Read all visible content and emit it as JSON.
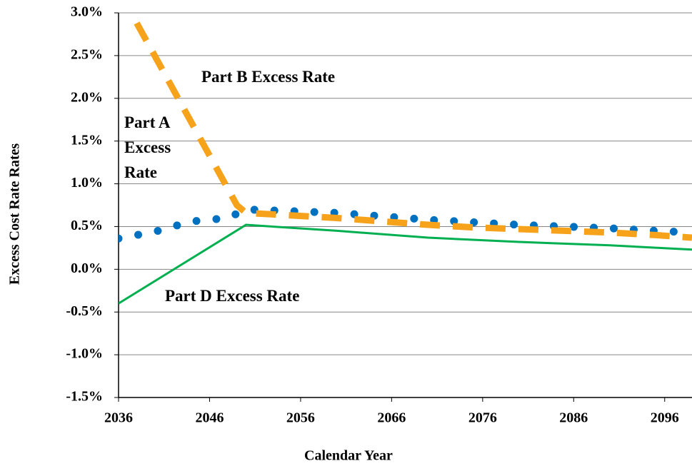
{
  "chart_data": {
    "type": "line",
    "xlabel": "Calendar Year",
    "ylabel": "Excess Cost Rate Rates",
    "xlim": [
      2036,
      2099
    ],
    "xticks": [
      2036,
      2046,
      2056,
      2066,
      2076,
      2086,
      2096
    ],
    "ylim": [
      -1.5,
      3.0
    ],
    "yticks": [
      {
        "value": -1.5,
        "label": "-1.5%"
      },
      {
        "value": -1.0,
        "label": "-1.0%"
      },
      {
        "value": -0.5,
        "label": "-0.5%"
      },
      {
        "value": 0.0,
        "label": "0.0%"
      },
      {
        "value": 0.5,
        "label": "0.5%"
      },
      {
        "value": 1.0,
        "label": "1.0%"
      },
      {
        "value": 1.5,
        "label": "1.5%"
      },
      {
        "value": 2.0,
        "label": "2.0%"
      },
      {
        "value": 2.5,
        "label": "2.5%"
      },
      {
        "value": 3.0,
        "label": "3.0%"
      }
    ],
    "grid": true,
    "series": [
      {
        "name": "Part A Excess Rate",
        "color": "#0070c0",
        "style": "dotted",
        "x": [
          2036,
          2040,
          2044,
          2048,
          2050,
          2055,
          2060,
          2065,
          2070,
          2075,
          2080,
          2085,
          2090,
          2095,
          2099
        ],
        "values": [
          0.36,
          0.44,
          0.56,
          0.6,
          0.7,
          0.68,
          0.66,
          0.62,
          0.58,
          0.55,
          0.52,
          0.5,
          0.48,
          0.45,
          0.43
        ]
      },
      {
        "name": "Part B Excess Rate",
        "color": "#f7a21b",
        "style": "dashed",
        "x": [
          2038,
          2049,
          2050,
          2055,
          2060,
          2065,
          2070,
          2075,
          2080,
          2085,
          2090,
          2095,
          2099
        ],
        "values": [
          2.88,
          0.75,
          0.66,
          0.63,
          0.6,
          0.56,
          0.52,
          0.49,
          0.47,
          0.45,
          0.43,
          0.4,
          0.37
        ]
      },
      {
        "name": "Part D Excess Rate",
        "color": "#00b050",
        "style": "solid",
        "x": [
          2036,
          2050,
          2060,
          2070,
          2080,
          2090,
          2099
        ],
        "values": [
          -0.4,
          0.52,
          0.45,
          0.37,
          0.32,
          0.28,
          0.23
        ]
      }
    ]
  }
}
